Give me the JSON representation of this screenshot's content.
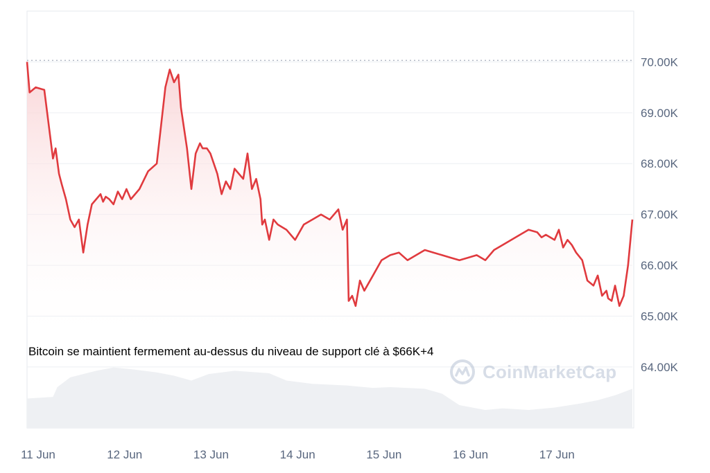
{
  "caption": "Bitcoin se maintient fermement au-dessus du niveau de support clé à $66K+4",
  "watermark": {
    "text": "CoinMarketCap",
    "icon": "coinmarketcap-logo-icon"
  },
  "colors": {
    "line": "#e03a3e",
    "fill_top": "#f9d3d5",
    "volume": "#eef0f3",
    "grid": "#eceff3",
    "ref_line": "#9aa4b2"
  },
  "chart_data": {
    "type": "line",
    "y_tick_labels": [
      "70.00K",
      "69.00K",
      "68.00K",
      "67.00K",
      "66.00K",
      "65.00K",
      "64.00K"
    ],
    "y_ticks": [
      70000,
      69000,
      68000,
      67000,
      66000,
      65000,
      64000
    ],
    "x_tick_labels": [
      "11 Jun",
      "12 Jun",
      "13 Jun",
      "14 Jun",
      "15 Jun",
      "16 Jun",
      "17 Jun"
    ],
    "x_ticks": [
      11,
      12,
      13,
      14,
      15,
      16,
      17
    ],
    "ylim": [
      62800,
      71000
    ],
    "xlim": [
      11,
      18.0
    ],
    "reference_line": 70030,
    "price": {
      "x": [
        11.0,
        11.03,
        11.1,
        11.2,
        11.3,
        11.33,
        11.37,
        11.4,
        11.45,
        11.5,
        11.55,
        11.6,
        11.65,
        11.7,
        11.75,
        11.8,
        11.85,
        11.88,
        11.91,
        11.95,
        12.0,
        12.05,
        12.1,
        12.15,
        12.2,
        12.3,
        12.4,
        12.5,
        12.6,
        12.65,
        12.7,
        12.75,
        12.78,
        12.85,
        12.9,
        12.95,
        13.0,
        13.03,
        13.08,
        13.12,
        13.2,
        13.25,
        13.3,
        13.35,
        13.4,
        13.5,
        13.55,
        13.6,
        13.65,
        13.7,
        13.72,
        13.75,
        13.8,
        13.85,
        13.9,
        14.0,
        14.1,
        14.2,
        14.3,
        14.4,
        14.5,
        14.6,
        14.65,
        14.7,
        14.72,
        14.76,
        14.8,
        14.85,
        14.9,
        15.0,
        15.1,
        15.2,
        15.3,
        15.4,
        15.5,
        15.6,
        15.7,
        15.8,
        15.9,
        16.0,
        16.1,
        16.2,
        16.3,
        16.4,
        16.5,
        16.6,
        16.7,
        16.8,
        16.9,
        16.95,
        17.0,
        17.1,
        17.15,
        17.2,
        17.25,
        17.3,
        17.35,
        17.42,
        17.48,
        17.55,
        17.6,
        17.65,
        17.7,
        17.72,
        17.76,
        17.8,
        17.85,
        17.9,
        17.95,
        18.0
      ],
      "y": [
        70000,
        69400,
        69500,
        69450,
        68100,
        68300,
        67800,
        67600,
        67300,
        66900,
        66750,
        66900,
        66250,
        66800,
        67200,
        67300,
        67400,
        67250,
        67350,
        67300,
        67200,
        67450,
        67300,
        67500,
        67300,
        67500,
        67850,
        68000,
        69500,
        69850,
        69600,
        69750,
        69100,
        68300,
        67500,
        68200,
        68400,
        68300,
        68300,
        68200,
        67800,
        67400,
        67650,
        67500,
        67900,
        67700,
        68200,
        67500,
        67700,
        67300,
        66800,
        66900,
        66500,
        66900,
        66800,
        66700,
        66500,
        66800,
        66900,
        67000,
        66900,
        67100,
        66700,
        66900,
        65300,
        65400,
        65200,
        65700,
        65500,
        65800,
        66100,
        66200,
        66250,
        66100,
        66200,
        66300,
        66250,
        66200,
        66150,
        66100,
        66150,
        66200,
        66100,
        66300,
        66400,
        66500,
        66600,
        66700,
        66650,
        66550,
        66600,
        66500,
        66700,
        66350,
        66500,
        66400,
        66250,
        66100,
        65700,
        65600,
        65800,
        65400,
        65500,
        65350,
        65300,
        65600,
        65200,
        65400,
        66000,
        66900
      ]
    },
    "volume": {
      "x": [
        11.0,
        11.3,
        11.35,
        11.5,
        11.8,
        12.0,
        12.2,
        12.5,
        12.7,
        12.9,
        13.1,
        13.4,
        13.8,
        14.0,
        14.3,
        14.7,
        15.0,
        15.2,
        15.6,
        15.8,
        16.0,
        16.3,
        16.5,
        16.8,
        17.1,
        17.4,
        17.6,
        17.8,
        18.0
      ],
      "v": [
        36,
        38,
        50,
        62,
        70,
        74,
        72,
        68,
        64,
        58,
        66,
        70,
        67,
        58,
        54,
        52,
        49,
        50,
        48,
        42,
        28,
        22,
        24,
        22,
        25,
        30,
        34,
        40,
        48
      ]
    }
  }
}
